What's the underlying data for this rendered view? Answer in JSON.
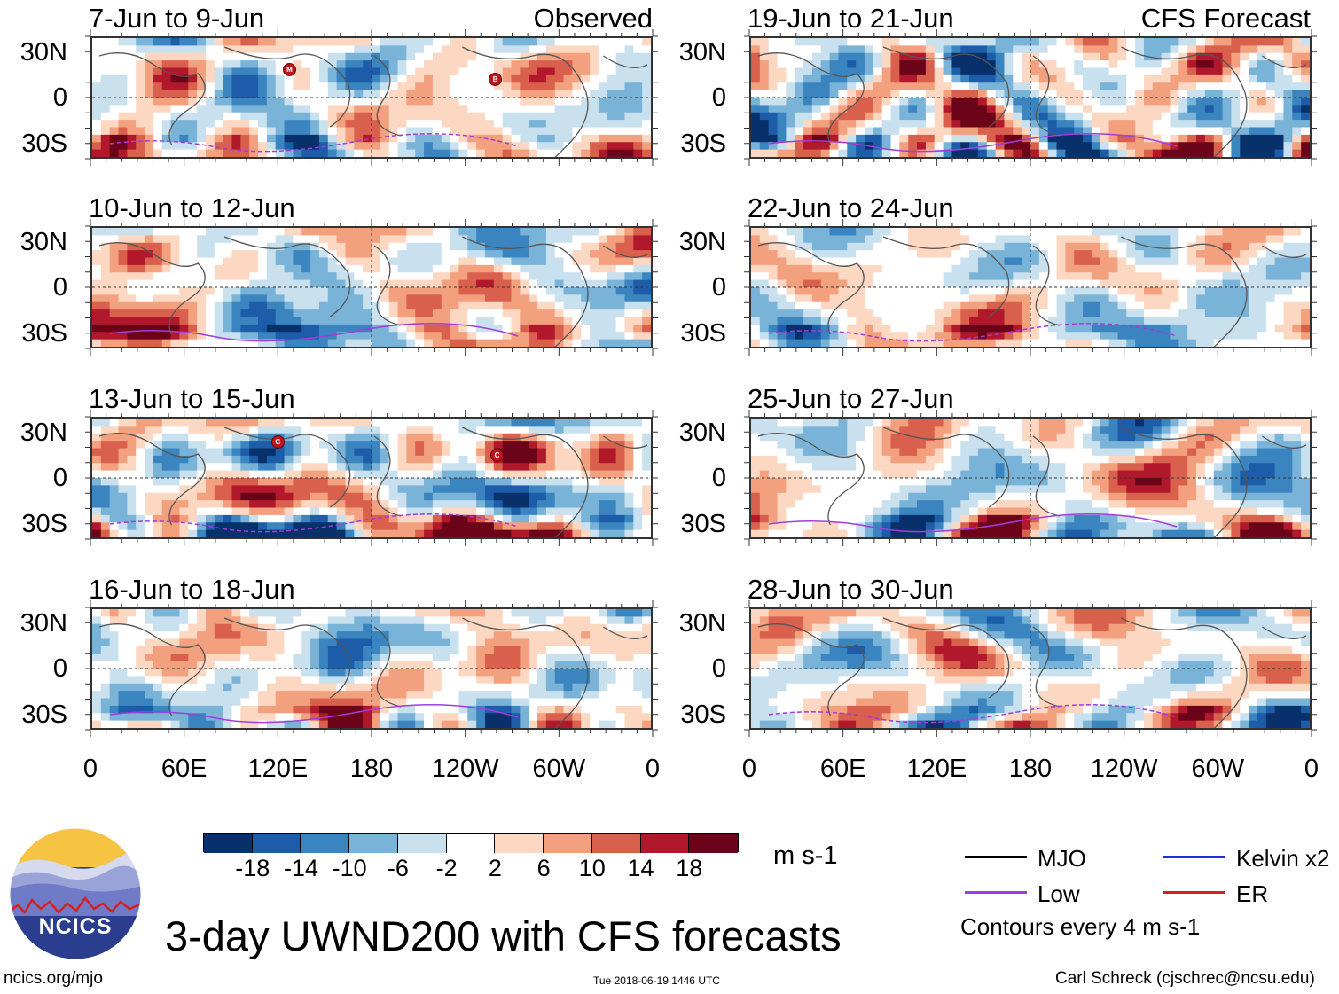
{
  "header": {
    "left_label": "Observed",
    "right_label": "CFS Forecast"
  },
  "panels_left": [
    {
      "title": "7-Jun to 9-Jun"
    },
    {
      "title": "10-Jun to 12-Jun"
    },
    {
      "title": "13-Jun to 15-Jun"
    },
    {
      "title": "16-Jun to 18-Jun"
    }
  ],
  "panels_right": [
    {
      "title": "19-Jun to 21-Jun"
    },
    {
      "title": "22-Jun to 24-Jun"
    },
    {
      "title": "25-Jun to 27-Jun"
    },
    {
      "title": "28-Jun to 30-Jun"
    }
  ],
  "chart_data": {
    "type": "heatmap",
    "title": "3-day UWND200 with CFS forecasts",
    "variable": "UWND200",
    "units": "m s-1",
    "y_ticks": [
      "30N",
      "0",
      "30S"
    ],
    "x_ticks": [
      "0",
      "60E",
      "120E",
      "180",
      "120W",
      "60W",
      "0"
    ],
    "colorbar_ticks": [
      "-18",
      "-14",
      "-10",
      "-6",
      "-2",
      "2",
      "6",
      "10",
      "14",
      "18"
    ],
    "colorbar_colors": [
      "#08306b",
      "#1c5ca8",
      "#3a85c0",
      "#7ab3d8",
      "#c9e0ef",
      "#ffffff",
      "#fcd7c2",
      "#f2a07e",
      "#d9604c",
      "#b2182b",
      "#6b0418"
    ],
    "contour_note": "Contours every 4 m s-1",
    "legend": [
      {
        "name": "MJO",
        "color": "#000000"
      },
      {
        "name": "Kelvin x2",
        "color": "#1f2fd6"
      },
      {
        "name": "Low",
        "color": "#a23cdb"
      },
      {
        "name": "ER",
        "color": "#d42020"
      }
    ],
    "storm_markers": [
      "M",
      "B",
      "G",
      "C"
    ]
  },
  "footer": {
    "logo_text": "NCICS",
    "site": "ncics.org/mjo",
    "timestamp": "Tue 2018-06-19 1446 UTC",
    "author": "Carl Schreck (cjschrec@ncsu.edu)"
  }
}
